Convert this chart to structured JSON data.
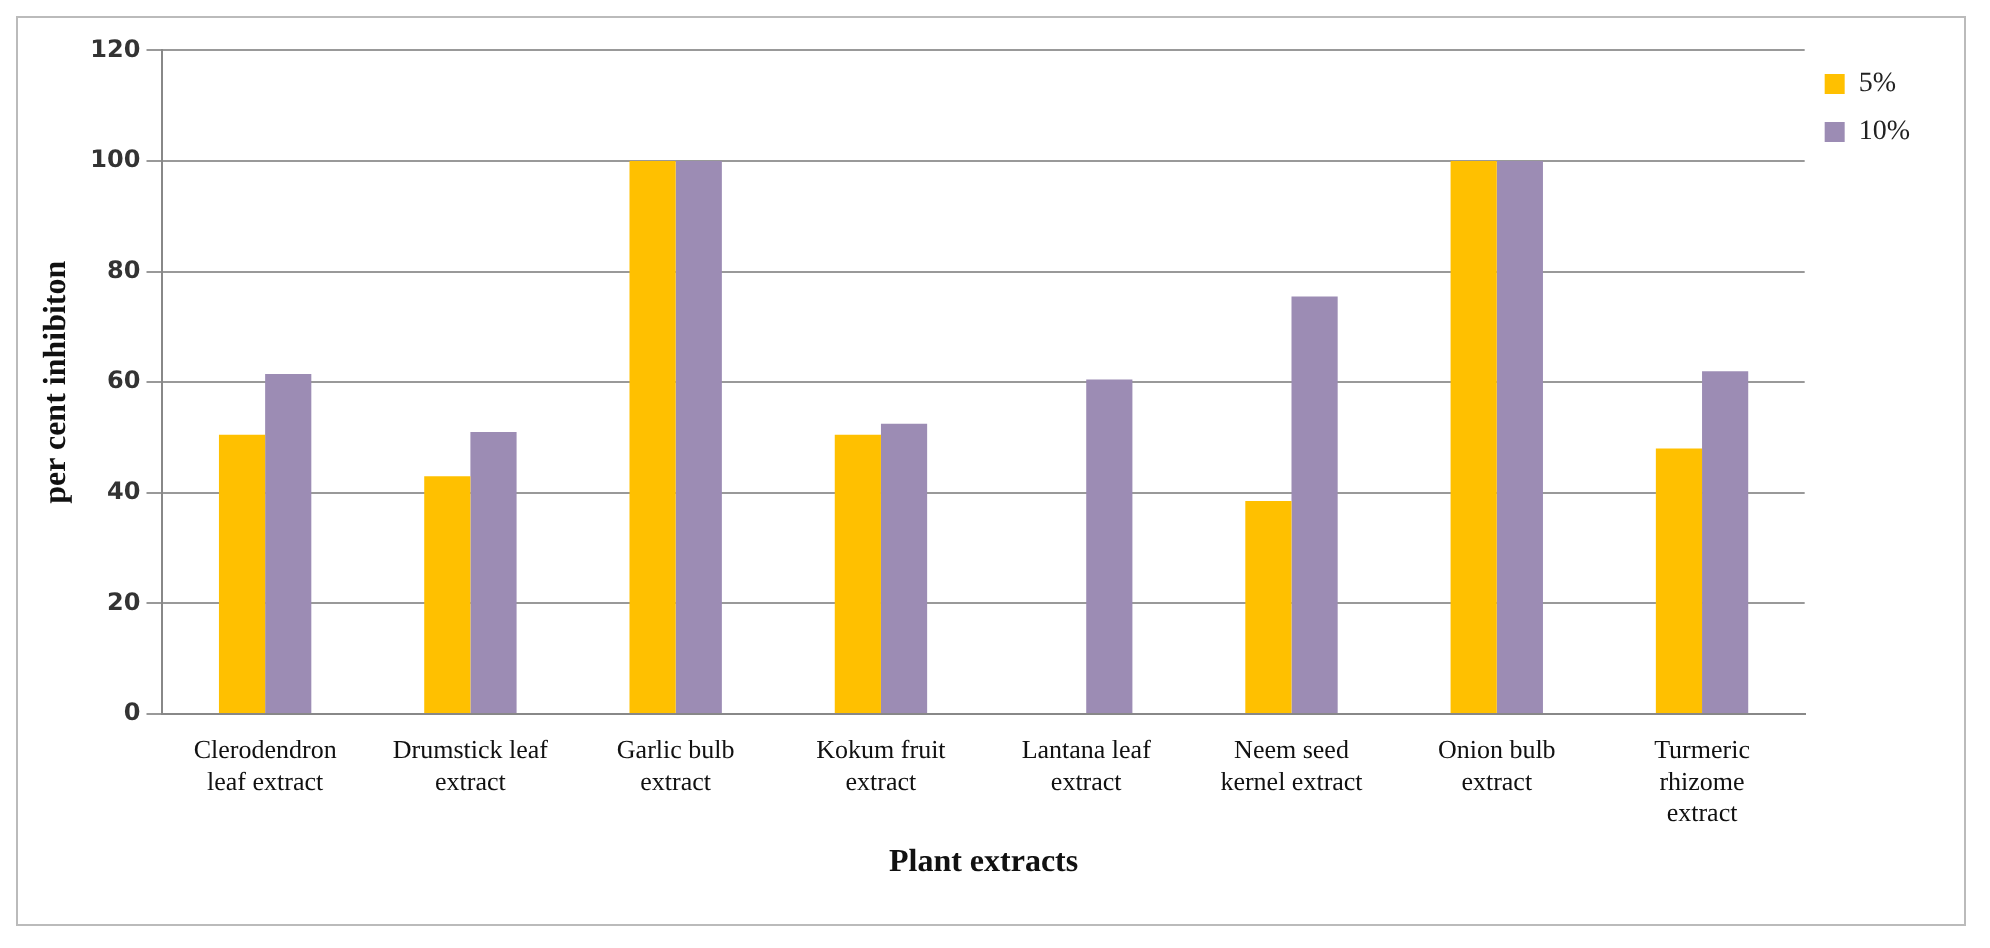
{
  "chart_data": {
    "type": "bar",
    "xlabel": "Plant extracts",
    "ylabel": "per cent inhibiton",
    "categories": [
      "Clerodendron leaf extract",
      "Drumstick leaf extract",
      "Garlic bulb extract",
      "Kokum fruit extract",
      "Lantana leaf extract",
      "Neem seed kernel extract",
      "Onion bulb extract",
      "Turmeric rhizome extract"
    ],
    "series": [
      {
        "name": "5%",
        "color": "#ffc000",
        "values": [
          50.5,
          43,
          100,
          50.5,
          null,
          38.5,
          100,
          48
        ]
      },
      {
        "name": "10%",
        "color": "#9c8cb4",
        "values": [
          61.5,
          51,
          100,
          52.5,
          60.5,
          75.5,
          100,
          62
        ]
      }
    ],
    "ylim": [
      0,
      120
    ],
    "yticks": [
      0,
      20,
      40,
      60,
      80,
      100,
      120
    ],
    "grid": "y",
    "legend": "right"
  }
}
